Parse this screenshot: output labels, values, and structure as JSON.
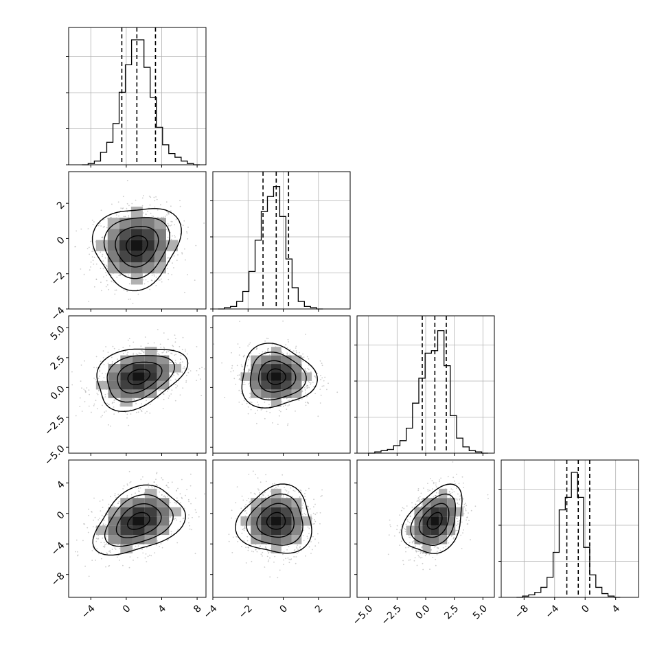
{
  "chart_data": {
    "type": "corner",
    "grid": true,
    "dimensions": [
      {
        "xlim": [
          -6.5,
          9.0
        ],
        "xticks": [
          -4,
          0,
          4,
          8
        ],
        "xticklabels": [
          "−4",
          "0",
          "4",
          "8"
        ],
        "hist": {
          "edges_start": -5.0,
          "bin_width": 0.7,
          "counts": [
            0,
            1,
            3,
            10,
            18,
            33,
            58,
            80,
            100,
            100,
            78,
            54,
            30,
            16,
            9,
            6,
            3,
            1,
            0
          ],
          "max": 100
        },
        "quantiles": [
          -0.5,
          1.2,
          3.3
        ]
      },
      {
        "xlim": [
          -4.0,
          3.8
        ],
        "xticks": [
          -4,
          -2,
          0,
          2
        ],
        "xticklabels": [
          "−4",
          "−2",
          "0",
          "2"
        ],
        "ylim": [
          -4.0,
          3.8
        ],
        "yticks": [
          -4,
          -2,
          0,
          2
        ],
        "yticklabels": [
          "−4",
          "−2",
          "0",
          "2"
        ],
        "hist": {
          "edges_start": -3.7,
          "bin_width": 0.35,
          "counts": [
            0,
            1,
            2,
            6,
            14,
            30,
            55,
            78,
            90,
            98,
            74,
            40,
            17,
            6,
            2,
            1,
            0
          ],
          "max": 100
        },
        "quantiles": [
          -1.15,
          -0.4,
          0.3
        ]
      },
      {
        "xlim": [
          -6.0,
          6.0
        ],
        "xticks": [
          -5.0,
          -2.5,
          0.0,
          2.5,
          5.0
        ],
        "xticklabels": [
          "−5.0",
          "−2.5",
          "0.0",
          "2.5",
          "5.0"
        ],
        "ylim": [
          -5.5,
          6.0
        ],
        "yticks": [
          -5.0,
          -2.5,
          0.0,
          2.5,
          5.0
        ],
        "yticklabels": [
          "−5.0",
          "−2.5",
          "0.0",
          "2.5",
          "5.0"
        ],
        "hist": {
          "edges_start": -5.0,
          "bin_width": 0.55,
          "counts": [
            0,
            1,
            2,
            3,
            6,
            10,
            20,
            40,
            60,
            80,
            82,
            98,
            70,
            30,
            12,
            5,
            2,
            1,
            0
          ],
          "max": 100
        },
        "quantiles": [
          -0.3,
          0.8,
          1.8
        ]
      },
      {
        "xlim": [
          -11.0,
          7.0
        ],
        "xticks": [
          -8,
          -4,
          0,
          4
        ],
        "xticklabels": [
          "−8",
          "−4",
          "0",
          "4"
        ],
        "ylim": [
          -11.0,
          7.0
        ],
        "yticks": [
          -8,
          -4,
          0,
          4
        ],
        "yticklabels": [
          "−8",
          "−4",
          "0",
          "4"
        ],
        "hist": {
          "edges_start": -9.0,
          "bin_width": 0.8,
          "counts": [
            0,
            1,
            2,
            4,
            8,
            16,
            36,
            70,
            80,
            100,
            80,
            40,
            18,
            8,
            3,
            1,
            0
          ],
          "max": 100
        },
        "quantiles": [
          -2.4,
          -0.9,
          0.6
        ]
      }
    ],
    "pairs": [
      {
        "col": 0,
        "row": 1,
        "center": [
          1.2,
          -0.4
        ],
        "sigma": [
          2.4,
          1.15
        ],
        "rho": 0.1
      },
      {
        "col": 0,
        "row": 2,
        "center": [
          1.4,
          0.9
        ],
        "sigma": [
          2.5,
          1.3
        ],
        "rho": 0.3
      },
      {
        "col": 1,
        "row": 2,
        "center": [
          -0.4,
          0.9
        ],
        "sigma": [
          1.05,
          1.3
        ],
        "rho": 0.0
      },
      {
        "col": 0,
        "row": 3,
        "center": [
          1.4,
          -1.0
        ],
        "sigma": [
          2.5,
          2.2
        ],
        "rho": 0.35
      },
      {
        "col": 1,
        "row": 3,
        "center": [
          -0.4,
          -1.0
        ],
        "sigma": [
          1.05,
          2.2
        ],
        "rho": 0.05
      },
      {
        "col": 2,
        "row": 3,
        "center": [
          0.8,
          -1.0
        ],
        "sigma": [
          1.3,
          2.2
        ],
        "rho": 0.35
      }
    ],
    "contour_levels": [
      0.5,
      1.0,
      1.5,
      2.0
    ],
    "quantile_levels": [
      0.16,
      0.5,
      0.84
    ]
  }
}
